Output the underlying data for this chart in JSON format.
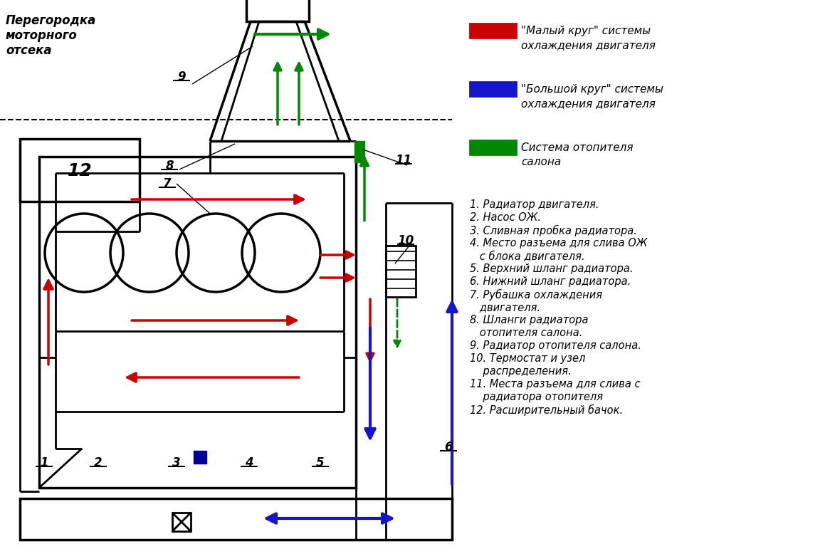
{
  "bg_color": "#ffffff",
  "lc": "#000000",
  "red": "#cc0000",
  "blue": "#1515cc",
  "green": "#008800",
  "partition_label": "Перегородка\nмоторного\nотсека",
  "legend_items": [
    {
      "label": "\"Малый круг\" системы\nохлаждения двигателя",
      "color": "#cc0000"
    },
    {
      "label": "\"Большой круг\" системы\nохлаждения двигателя",
      "color": "#1515cc"
    },
    {
      "label": "Система отопителя\nсалона",
      "color": "#008800"
    }
  ],
  "numbered_labels": [
    [
      "1. Радиатор двигателя.",
      null
    ],
    [
      "2. Насос ОЖ.",
      null
    ],
    [
      "3. Сливная пробка радиатора.",
      null
    ],
    [
      "4. Место разъема для слива ОЖ",
      "   с блока двигателя."
    ],
    [
      "5. Верхний шланг радиатора.",
      null
    ],
    [
      "6. Нижний шланг радиатора.",
      null
    ],
    [
      "7. Рубашка охлаждения",
      "   двигателя."
    ],
    [
      "8. Шланги радиатора",
      "   отопителя салона."
    ],
    [
      "9. Радиатор отопителя салона.",
      null
    ],
    [
      "10. Термостат и узел",
      "    распределения."
    ],
    [
      "11. Места разъема для слива с",
      "    радиатора отопителя"
    ],
    [
      "12. Расширительный бачок.",
      null
    ]
  ]
}
